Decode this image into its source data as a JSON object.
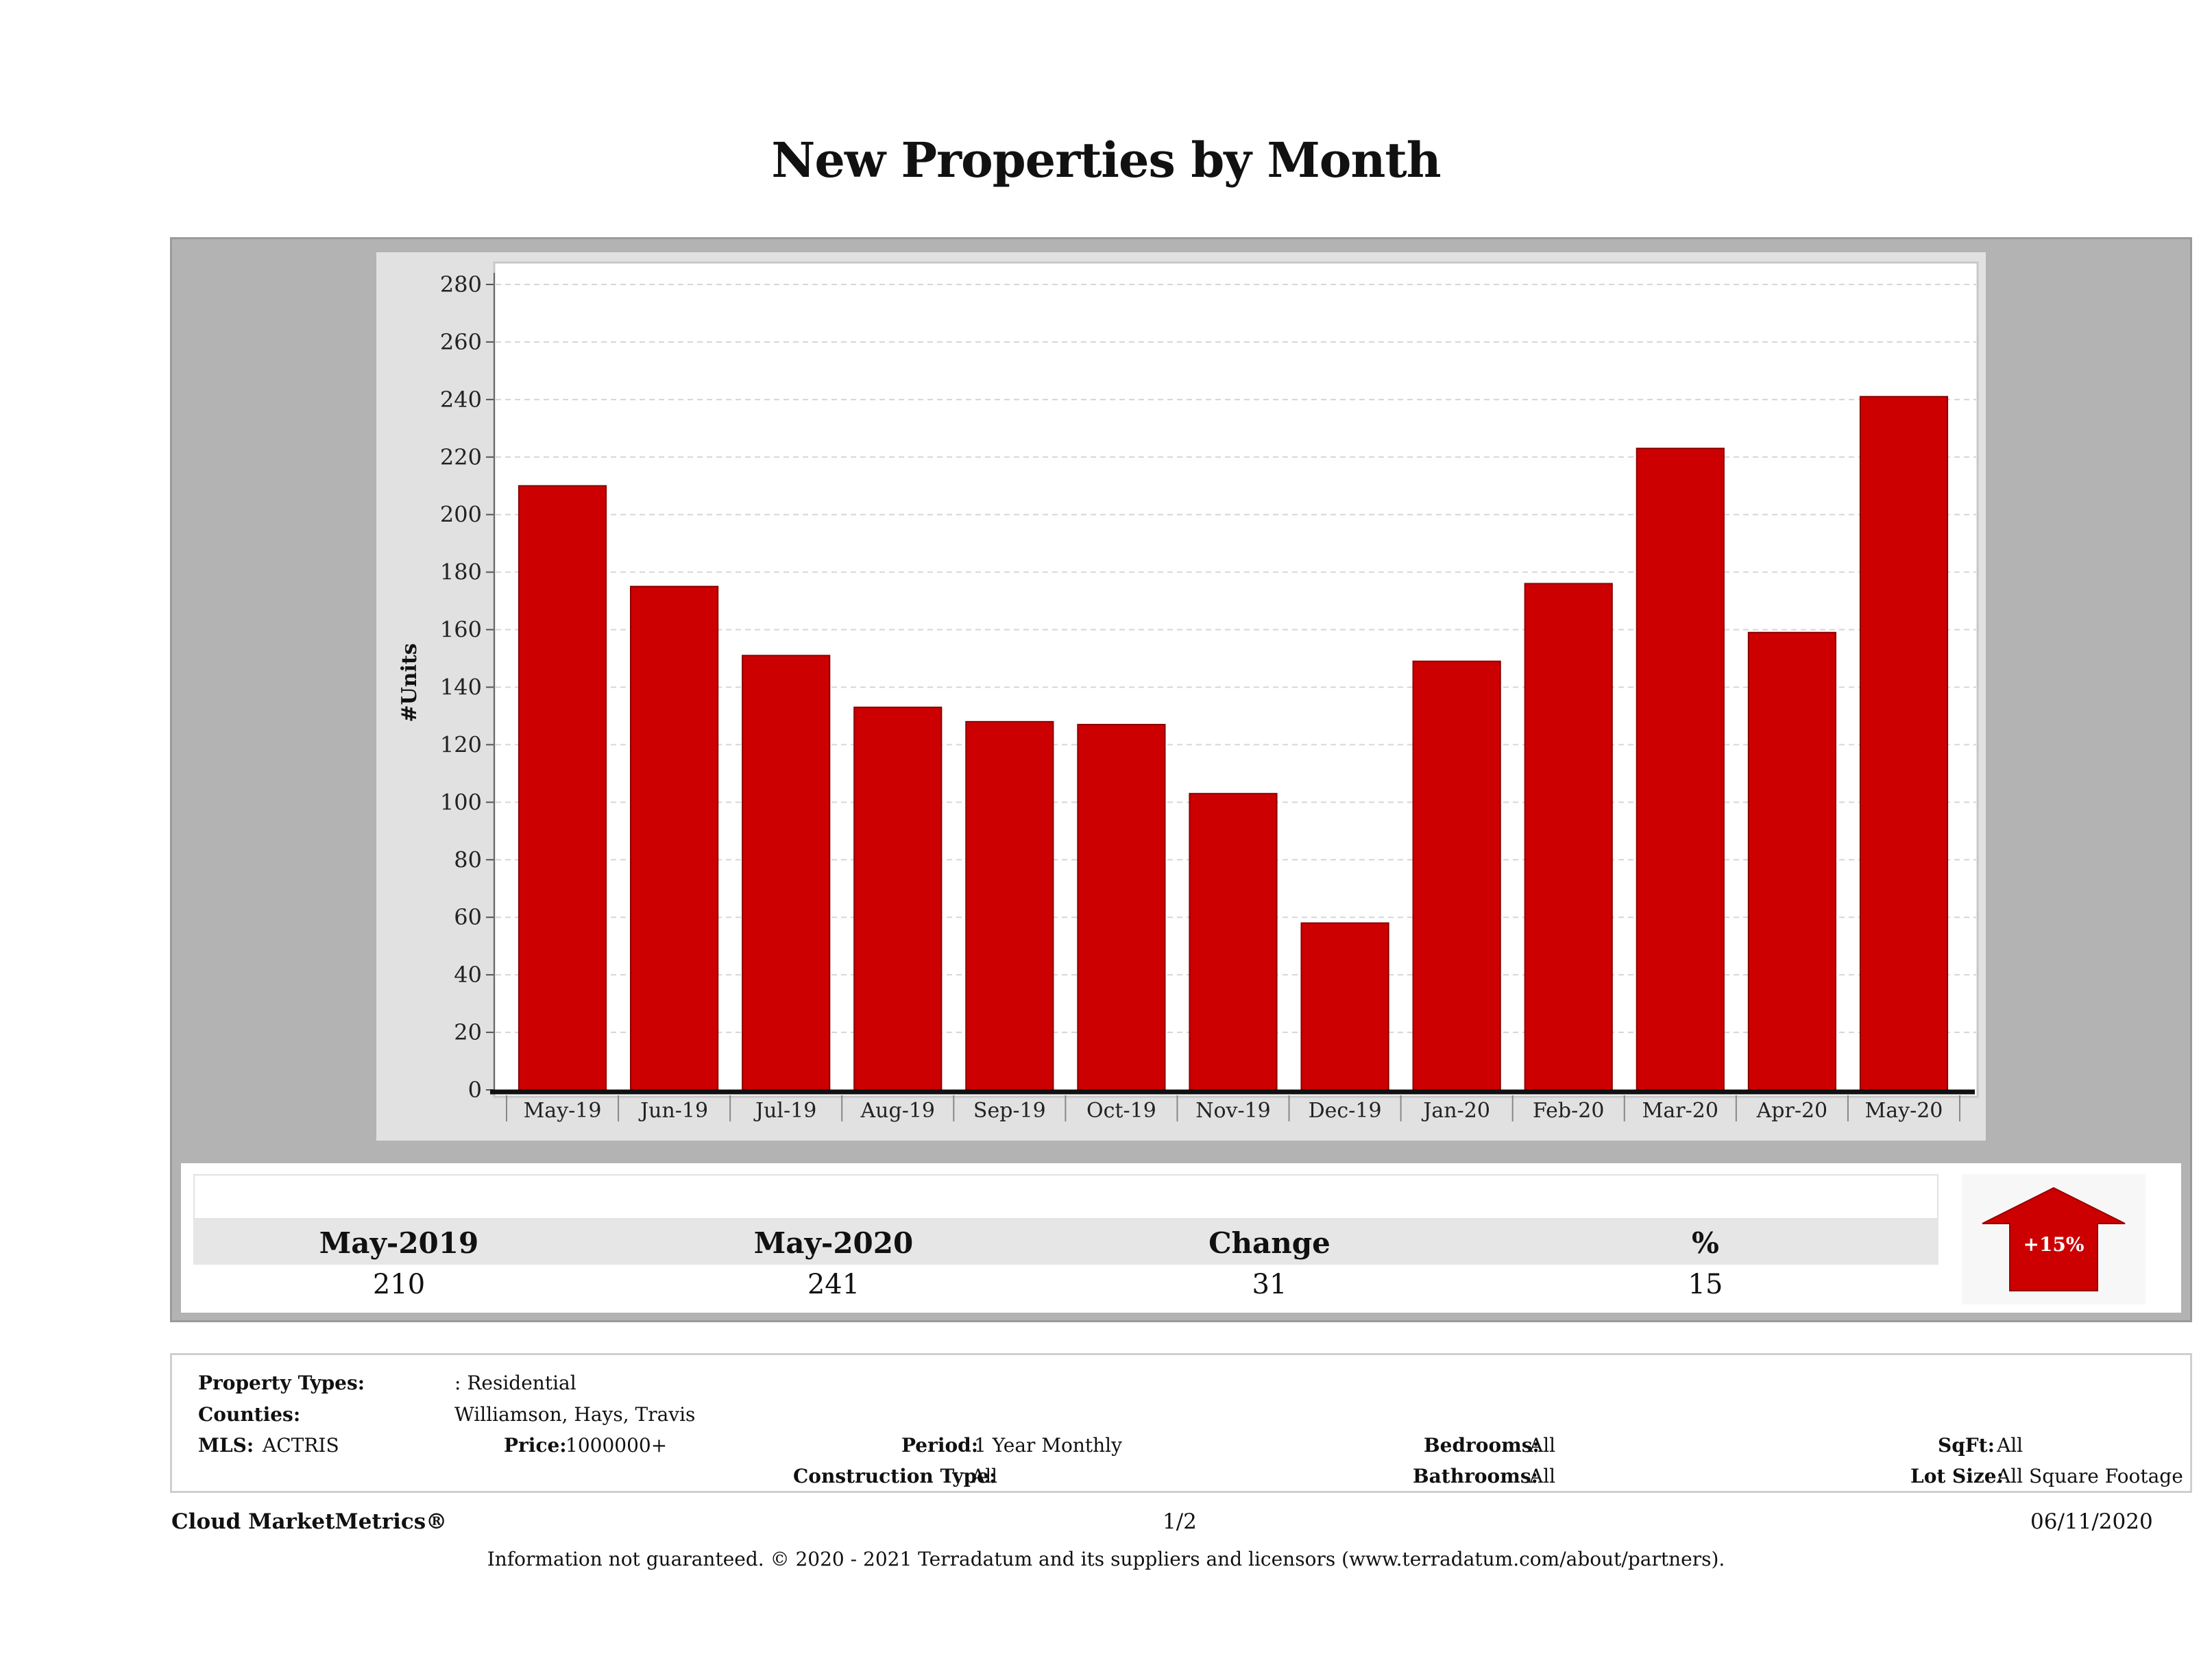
{
  "page": {
    "title": "New Properties by Month"
  },
  "chart_data": {
    "type": "bar",
    "title": "New Properties by Month",
    "ylabel": "#Units",
    "xlabel": "",
    "categories": [
      "May-19",
      "Jun-19",
      "Jul-19",
      "Aug-19",
      "Sep-19",
      "Oct-19",
      "Nov-19",
      "Dec-19",
      "Jan-20",
      "Feb-20",
      "Mar-20",
      "Apr-20",
      "May-20"
    ],
    "values": [
      210,
      175,
      151,
      133,
      128,
      127,
      103,
      58,
      149,
      176,
      223,
      159,
      241
    ],
    "ylim": [
      0,
      280
    ],
    "yticks": [
      0,
      20,
      40,
      60,
      80,
      100,
      120,
      140,
      160,
      180,
      200,
      220,
      240,
      260,
      280
    ],
    "grid": true,
    "legend": "none",
    "bar_color": "#cc0000"
  },
  "summary": {
    "headers": [
      "May-2019",
      "May-2020",
      "Change",
      "%"
    ],
    "values": [
      "210",
      "241",
      "31",
      "15"
    ],
    "change_badge": "+15%",
    "badge_color": "#cc0000"
  },
  "criteria": {
    "property_types_label": "Property Types:",
    "property_types_value": ": Residential",
    "counties_label": "Counties:",
    "counties_value": "Williamson, Hays, Travis",
    "mls_label": "MLS:",
    "mls_value": "ACTRIS",
    "price_label": "Price:",
    "price_value": "1000000+",
    "period_label": "Period:",
    "period_value": "1 Year Monthly",
    "construction_label": "Construction Type:",
    "construction_value": "All",
    "bedrooms_label": "Bedrooms:",
    "bedrooms_value": "All",
    "bathrooms_label": "Bathrooms:",
    "bathrooms_value": "All",
    "sqft_label": "SqFt:",
    "sqft_value": "All",
    "lotsize_label": "Lot Size:",
    "lotsize_value": "All Square Footage"
  },
  "footer": {
    "brand": "Cloud MarketMetrics®",
    "page_number": "1/2",
    "date": "06/11/2020",
    "disclaimer": "Information not guaranteed. © 2020 - 2021 Terradatum and its suppliers and licensors (www.terradatum.com/about/partners)."
  }
}
